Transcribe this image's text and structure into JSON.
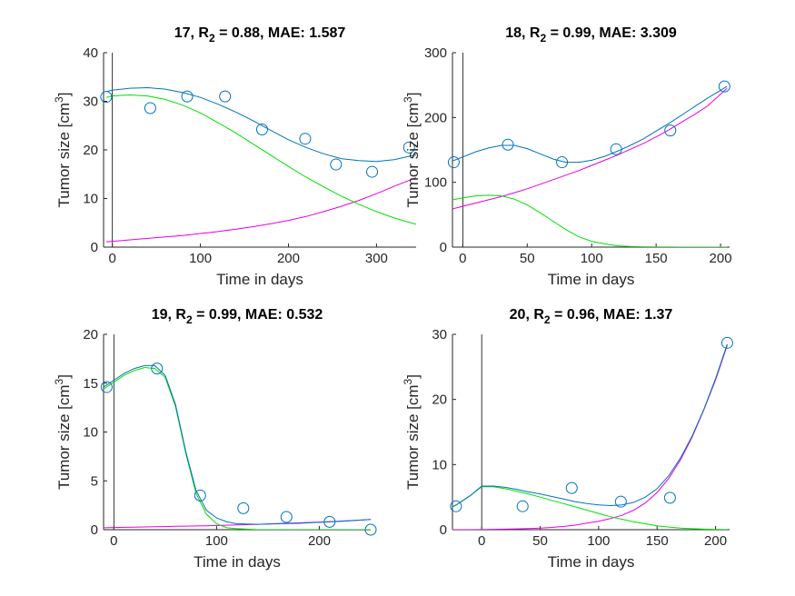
{
  "colors": {
    "fit": "#0072BD",
    "sensitive": "#00E000",
    "resistant": "#E600E6",
    "observed": "#0072BD",
    "axis": "#262626",
    "treatment_line": "#000000"
  },
  "chart_data": [
    {
      "type": "line",
      "title_prefix": "17, R",
      "title_sub": "2",
      "title_suffix": " = 0.88, MAE: 1.587",
      "xlabel": "Time in days",
      "ylabel_main": "Tumor size [cm",
      "ylabel_sup": "3",
      "ylabel_end": "]",
      "xlim": [
        -10,
        345
      ],
      "ylim": [
        0,
        40
      ],
      "xticks": [
        0,
        100,
        200,
        300
      ],
      "yticks": [
        0,
        10,
        20,
        30,
        40
      ],
      "treatment_day": 0,
      "observed": {
        "x": [
          -7,
          43,
          85,
          128,
          170,
          219,
          254,
          295,
          337
        ],
        "y": [
          30.9,
          28.6,
          31.0,
          31.0,
          24.2,
          22.3,
          17.0,
          15.5,
          20.5
        ]
      },
      "curves": {
        "x": [
          -7,
          0,
          20,
          40,
          60,
          80,
          100,
          120,
          140,
          160,
          180,
          200,
          220,
          240,
          260,
          280,
          300,
          320,
          345
        ],
        "fit": [
          32.0,
          32.3,
          32.7,
          32.8,
          32.5,
          31.8,
          30.8,
          29.4,
          27.8,
          26.0,
          24.0,
          22.1,
          20.5,
          19.2,
          18.2,
          17.8,
          17.6,
          18.0,
          19.0
        ],
        "sensitive": [
          30.8,
          31.1,
          31.3,
          31.1,
          30.4,
          29.2,
          27.6,
          25.6,
          23.5,
          21.2,
          18.9,
          16.6,
          14.4,
          12.4,
          10.5,
          8.8,
          7.3,
          6.0,
          4.7
        ],
        "resistant": [
          1.1,
          1.2,
          1.5,
          1.8,
          2.1,
          2.4,
          2.8,
          3.2,
          3.7,
          4.2,
          4.8,
          5.5,
          6.3,
          7.3,
          8.4,
          9.6,
          11.0,
          12.5,
          14.3
        ]
      }
    },
    {
      "type": "line",
      "title_prefix": "18, R",
      "title_sub": "2",
      "title_suffix": " = 0.99, MAE: 3.309",
      "xlabel": "Time in days",
      "ylabel_main": "Tumor size [cm",
      "ylabel_sup": "3",
      "ylabel_end": "]",
      "xlim": [
        -8,
        207
      ],
      "ylim": [
        0,
        300
      ],
      "xticks": [
        0,
        50,
        100,
        150,
        200
      ],
      "yticks": [
        0,
        100,
        200,
        300
      ],
      "treatment_day": 0,
      "observed": {
        "x": [
          -7,
          35,
          77,
          119,
          161,
          203
        ],
        "y": [
          131,
          158,
          131,
          151,
          180,
          248
        ]
      },
      "curves": {
        "x": [
          -8,
          0,
          10,
          20,
          30,
          40,
          50,
          60,
          70,
          80,
          90,
          100,
          110,
          120,
          130,
          140,
          150,
          160,
          170,
          180,
          190,
          205
        ],
        "fit": [
          133,
          139,
          147,
          153,
          157,
          157,
          152,
          144,
          136,
          131,
          131,
          134,
          140,
          148,
          157,
          167,
          179,
          191,
          204,
          217,
          230,
          248
        ],
        "sensitive": [
          73,
          76,
          79,
          80,
          79,
          74,
          65,
          53,
          40,
          27,
          16,
          9,
          5,
          2,
          1,
          0.5,
          0.2,
          0.1,
          0,
          0,
          0,
          0
        ],
        "resistant": [
          59,
          63,
          68,
          73,
          78,
          84,
          90,
          97,
          104,
          111,
          118,
          126,
          134,
          142,
          151,
          160,
          170,
          181,
          193,
          205,
          218,
          245
        ]
      }
    },
    {
      "type": "line",
      "title_prefix": "19, R",
      "title_sub": "2",
      "title_suffix": " = 0.99, MAE: 0.532",
      "xlabel": "Time in days",
      "ylabel_main": "Tumor size [cm",
      "ylabel_sup": "3",
      "ylabel_end": "]",
      "xlim": [
        -10,
        250
      ],
      "ylim": [
        0,
        20
      ],
      "xticks": [
        0,
        100,
        200
      ],
      "yticks": [
        0,
        5,
        10,
        15,
        20
      ],
      "treatment_day": 0,
      "observed": {
        "x": [
          -7,
          42,
          84,
          126,
          168,
          210,
          250
        ],
        "y": [
          14.6,
          16.5,
          3.5,
          2.2,
          1.3,
          0.8,
          0.0
        ]
      },
      "curves": {
        "x": [
          -10,
          0,
          10,
          20,
          30,
          40,
          50,
          60,
          70,
          80,
          90,
          100,
          110,
          120,
          140,
          160,
          180,
          200,
          220,
          250
        ],
        "fit": [
          14.6,
          15.3,
          16.0,
          16.5,
          16.8,
          16.8,
          15.8,
          12.8,
          8.0,
          4.0,
          2.0,
          1.2,
          0.8,
          0.6,
          0.55,
          0.6,
          0.65,
          0.75,
          0.85,
          1.05
        ],
        "sensitive": [
          14.4,
          15.1,
          15.8,
          16.3,
          16.6,
          16.5,
          15.6,
          12.6,
          7.8,
          3.7,
          1.6,
          0.6,
          0.2,
          0.1,
          0,
          0,
          0,
          0,
          0,
          0
        ],
        "resistant": [
          0.2,
          0.22,
          0.24,
          0.26,
          0.28,
          0.3,
          0.32,
          0.34,
          0.36,
          0.38,
          0.4,
          0.43,
          0.46,
          0.49,
          0.55,
          0.62,
          0.7,
          0.78,
          0.87,
          1.05
        ]
      }
    },
    {
      "type": "line",
      "title_prefix": "20, R",
      "title_sub": "2",
      "title_suffix": " = 0.96, MAE: 1.37",
      "xlabel": "Time in days",
      "ylabel_main": "Tumor size [cm",
      "ylabel_sup": "3",
      "ylabel_end": "]",
      "xlim": [
        -25,
        212
      ],
      "ylim": [
        0,
        30
      ],
      "xticks": [
        0,
        50,
        100,
        150,
        200
      ],
      "yticks": [
        0,
        10,
        20,
        30
      ],
      "treatment_day": 0,
      "observed": {
        "x": [
          -22,
          35,
          77,
          119,
          161,
          210
        ],
        "y": [
          3.6,
          3.6,
          6.4,
          4.3,
          4.9,
          28.7
        ]
      },
      "curves": {
        "x": [
          -25,
          -20,
          -10,
          0,
          10,
          20,
          30,
          40,
          50,
          60,
          70,
          80,
          90,
          100,
          110,
          120,
          130,
          140,
          150,
          160,
          170,
          180,
          190,
          200,
          210
        ],
        "fit": [
          3.5,
          4.0,
          5.2,
          6.7,
          6.7,
          6.5,
          6.2,
          5.8,
          5.5,
          5.1,
          4.7,
          4.3,
          4.0,
          3.8,
          3.7,
          3.8,
          4.2,
          5.0,
          6.3,
          8.3,
          11.0,
          14.4,
          18.5,
          23.2,
          28.5
        ],
        "sensitive": [
          3.5,
          4.0,
          5.2,
          6.6,
          6.6,
          6.3,
          5.9,
          5.5,
          5.0,
          4.5,
          4.0,
          3.5,
          3.0,
          2.5,
          2.0,
          1.6,
          1.2,
          0.9,
          0.6,
          0.4,
          0.25,
          0.15,
          0.08,
          0.04,
          0.02
        ],
        "resistant": [
          0,
          0,
          0,
          0.02,
          0.05,
          0.08,
          0.12,
          0.18,
          0.25,
          0.35,
          0.5,
          0.7,
          1.0,
          1.3,
          1.7,
          2.2,
          3.0,
          4.1,
          5.7,
          7.9,
          10.7,
          14.2,
          18.4,
          23.0,
          28.3
        ]
      }
    }
  ]
}
